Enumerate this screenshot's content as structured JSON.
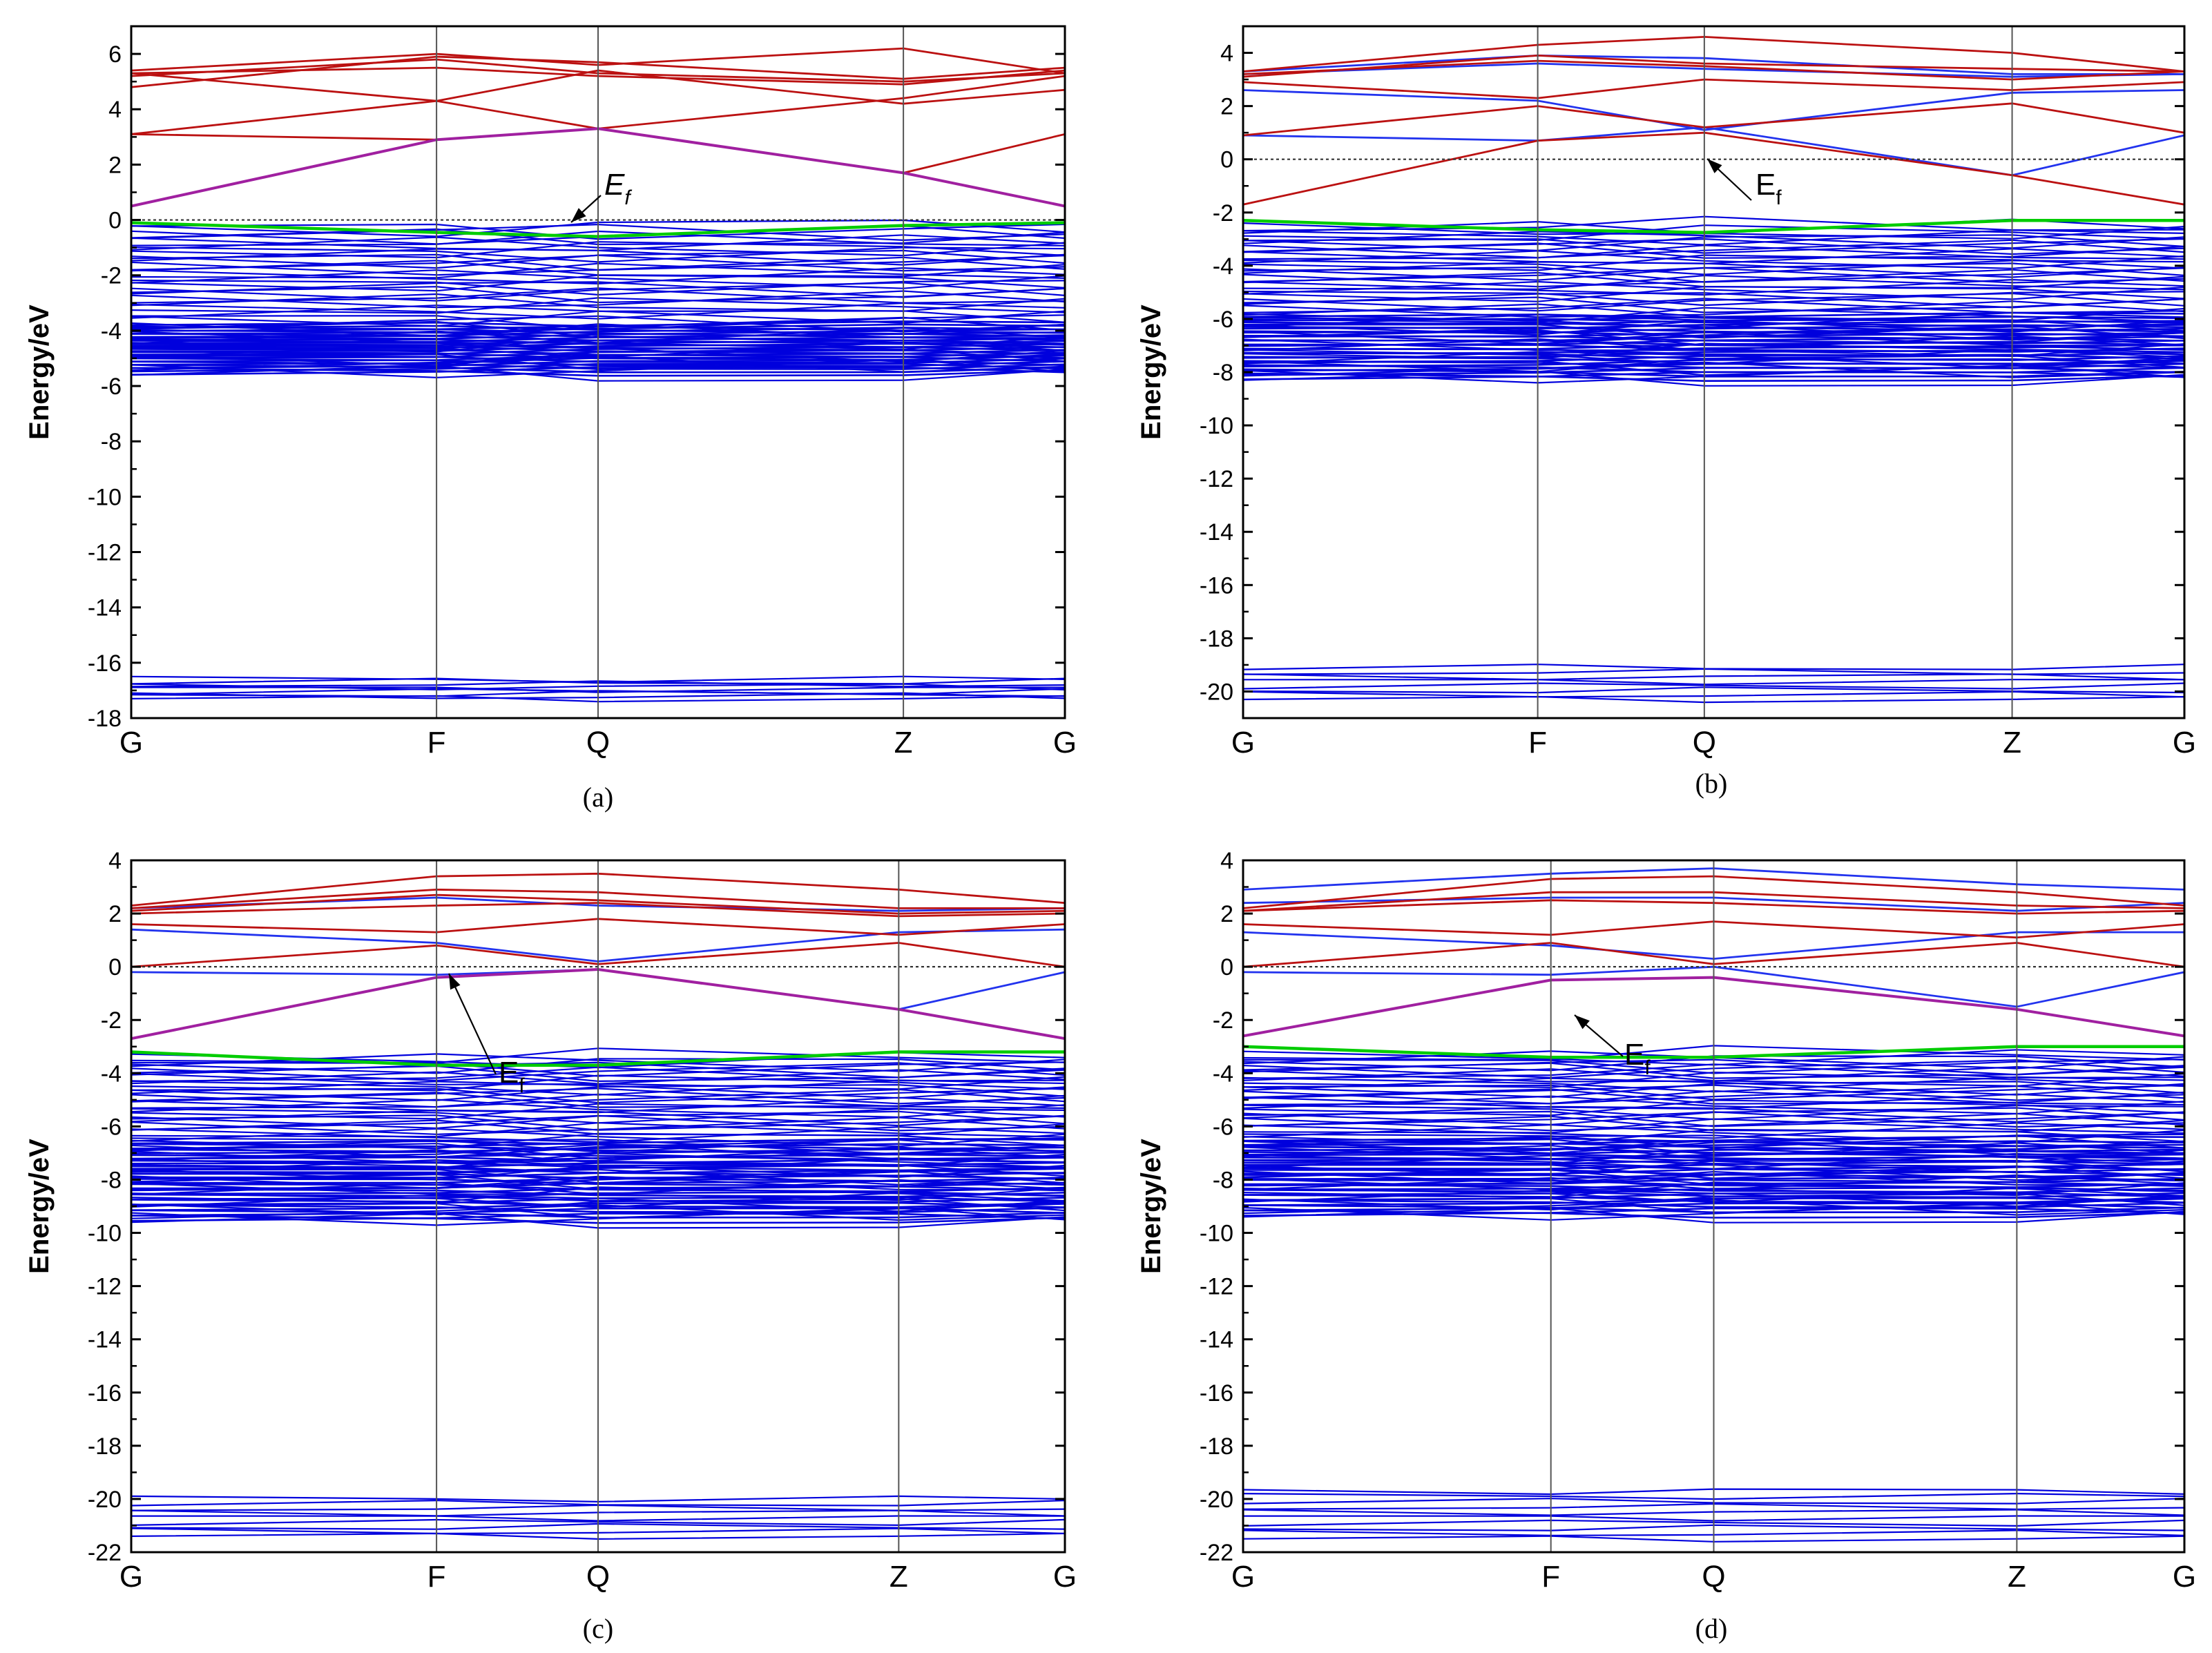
{
  "figure": {
    "kpoints": [
      "G",
      "F",
      "Q",
      "Z",
      "G"
    ],
    "ylabel": "Energy/eV",
    "colors": {
      "core": "#0000dd",
      "valence": "#0000dd",
      "valence_top": "#00cc00",
      "impurity": "#a020a0",
      "conduction": "#bb1111",
      "spin_down": "#2233ee",
      "fermi": "#333333",
      "kline": "#555555"
    }
  },
  "chart_data": [
    {
      "panel": "a",
      "type": "line",
      "caption": "(a)",
      "ylabel": "Energy/eV",
      "ylim": [
        -18,
        7
      ],
      "yticks": [
        -18,
        -16,
        -14,
        -12,
        -10,
        -8,
        -6,
        -4,
        -2,
        0,
        2,
        4,
        6
      ],
      "ytick_labels": [
        "-18",
        "-16",
        "-14",
        "-12",
        "-10",
        "-8",
        "-6",
        "-4",
        "-2",
        "0",
        "2",
        "4",
        "6"
      ],
      "kpoints": [
        "G",
        "F",
        "Q",
        "Z",
        "G"
      ],
      "kpos": [
        0,
        0.327,
        0.5,
        0.827,
        1.0
      ],
      "fermi_level": 0,
      "fermi_label": "E",
      "fermi_sub": "f",
      "valence_top": [
        -0.1,
        -0.45,
        -0.6,
        -0.2,
        -0.1
      ],
      "valence_band": {
        "lines": 46,
        "range": [
          -5.6,
          -0.25
        ],
        "dense_below": -3.9
      },
      "core_band": {
        "lines": 9,
        "range": [
          -17.3,
          -16.6
        ]
      },
      "impurity": [
        [
          0.5,
          2.9,
          3.3,
          1.7,
          0.5
        ]
      ],
      "conduction": [
        [
          3.1,
          2.9,
          3.3,
          1.7,
          3.1
        ],
        [
          3.1,
          4.3,
          3.3,
          4.4,
          5.2
        ],
        [
          5.3,
          4.3,
          5.4,
          4.2,
          4.7
        ],
        [
          5.4,
          6.0,
          5.6,
          6.2,
          5.3
        ],
        [
          5.2,
          5.8,
          5.3,
          5.0,
          5.3
        ],
        [
          5.3,
          5.5,
          5.2,
          4.9,
          5.4
        ],
        [
          4.8,
          5.9,
          5.7,
          5.1,
          5.5
        ]
      ],
      "spin_down": []
    },
    {
      "panel": "b",
      "type": "line",
      "caption": "(b)",
      "ylabel": "Energy/eV",
      "ylim": [
        -21,
        5
      ],
      "yticks": [
        -20,
        -18,
        -16,
        -14,
        -12,
        -10,
        -8,
        -6,
        -4,
        -2,
        0,
        2,
        4
      ],
      "ytick_labels": [
        "-20",
        "-18",
        "-16",
        "-14",
        "-12",
        "-10",
        "-8",
        "-6",
        "-4",
        "-2",
        "0",
        "2",
        "4"
      ],
      "kpoints": [
        "G",
        "F",
        "Q",
        "Z",
        "G"
      ],
      "kpos": [
        0,
        0.313,
        0.49,
        0.817,
        1.0
      ],
      "fermi_level": 0,
      "fermi_label": "E",
      "fermi_sub": "f",
      "valence_top": [
        -2.3,
        -2.65,
        -2.75,
        -2.3,
        -2.3
      ],
      "valence_band": {
        "lines": 52,
        "range": [
          -8.3,
          -2.5
        ],
        "dense_below": -6.0
      },
      "core_band": {
        "lines": 8,
        "range": [
          -20.3,
          -19.1
        ]
      },
      "impurity": [],
      "conduction": [
        [
          -1.7,
          0.7,
          1.0,
          -0.6,
          -1.7
        ],
        [
          0.9,
          2.0,
          1.2,
          2.1,
          1.0
        ],
        [
          2.9,
          2.3,
          3.0,
          2.6,
          2.9
        ],
        [
          3.2,
          3.7,
          3.5,
          3.0,
          3.3
        ],
        [
          3.3,
          4.3,
          4.6,
          4.0,
          3.3
        ],
        [
          3.1,
          3.9,
          3.6,
          3.4,
          3.3
        ]
      ],
      "spin_down": [
        [
          0.9,
          0.7,
          1.2,
          -0.6,
          0.9
        ],
        [
          2.6,
          2.2,
          1.1,
          2.5,
          2.6
        ],
        [
          3.2,
          3.6,
          3.4,
          3.1,
          3.2
        ],
        [
          3.3,
          3.9,
          3.8,
          3.2,
          3.2
        ]
      ]
    },
    {
      "panel": "c",
      "type": "line",
      "caption": "(c)",
      "ylabel": "Energy/eV",
      "ylim": [
        -22,
        4
      ],
      "yticks": [
        -22,
        -20,
        -18,
        -16,
        -14,
        -12,
        -10,
        -8,
        -6,
        -4,
        -2,
        0,
        2,
        4
      ],
      "ytick_labels": [
        "-22",
        "-20",
        "-18",
        "-16",
        "-14",
        "-12",
        "-10",
        "-8",
        "-6",
        "-4",
        "-2",
        "0",
        "2",
        "4"
      ],
      "kpoints": [
        "G",
        "F",
        "Q",
        "Z",
        "G"
      ],
      "kpos": [
        0,
        0.327,
        0.5,
        0.822,
        1.0
      ],
      "fermi_level": 0,
      "fermi_label": "E",
      "fermi_sub": "f",
      "valence_top": [
        -3.2,
        -3.7,
        -3.7,
        -3.2,
        -3.2
      ],
      "valence_band": {
        "lines": 60,
        "range": [
          -9.6,
          -3.4
        ],
        "dense_below": -6.7
      },
      "core_band": {
        "lines": 9,
        "range": [
          -21.4,
          -20.0
        ]
      },
      "impurity": [
        [
          -2.7,
          -0.4,
          -0.1,
          -1.6,
          -2.7
        ]
      ],
      "conduction": [
        [
          0.0,
          0.8,
          0.1,
          0.9,
          0.0
        ],
        [
          1.6,
          1.3,
          1.8,
          1.2,
          1.6
        ],
        [
          2.1,
          2.7,
          2.5,
          2.0,
          2.1
        ],
        [
          2.3,
          3.4,
          3.5,
          2.9,
          2.4
        ],
        [
          2.2,
          2.9,
          2.8,
          2.2,
          2.2
        ],
        [
          2.0,
          2.3,
          2.4,
          1.9,
          2.0
        ]
      ],
      "spin_down": [
        [
          -0.2,
          -0.3,
          -0.1,
          -1.6,
          -0.2
        ],
        [
          1.4,
          0.9,
          0.2,
          1.3,
          1.4
        ],
        [
          2.2,
          2.6,
          2.3,
          2.1,
          2.2
        ]
      ]
    },
    {
      "panel": "d",
      "type": "line",
      "caption": "(d)",
      "ylabel": "Energy/eV",
      "ylim": [
        -22,
        4
      ],
      "yticks": [
        -22,
        -20,
        -18,
        -16,
        -14,
        -12,
        -10,
        -8,
        -6,
        -4,
        -2,
        0,
        2,
        4
      ],
      "ytick_labels": [
        "-22",
        "-20",
        "-18",
        "-16",
        "-14",
        "-12",
        "-10",
        "-8",
        "-6",
        "-4",
        "-2",
        "0",
        "2",
        "4"
      ],
      "kpoints": [
        "G",
        "F",
        "Q",
        "Z",
        "G"
      ],
      "kpos": [
        0,
        0.327,
        0.5,
        0.822,
        1.0
      ],
      "fermi_level": 0,
      "fermi_label": "E",
      "fermi_sub": "f",
      "valence_top": [
        -3.0,
        -3.4,
        -3.4,
        -3.0,
        -3.0
      ],
      "valence_band": {
        "lines": 60,
        "range": [
          -9.4,
          -3.3
        ],
        "dense_below": -6.6
      },
      "core_band": {
        "lines": 10,
        "range": [
          -21.5,
          -19.7
        ]
      },
      "impurity": [
        [
          -2.6,
          -0.5,
          -0.4,
          -1.6,
          -2.6
        ]
      ],
      "conduction": [
        [
          0.0,
          0.9,
          0.1,
          0.9,
          0.0
        ],
        [
          1.6,
          1.2,
          1.7,
          1.1,
          1.6
        ],
        [
          2.1,
          2.5,
          2.4,
          2.0,
          2.1
        ],
        [
          2.2,
          3.3,
          3.4,
          2.8,
          2.3
        ],
        [
          2.1,
          2.8,
          2.8,
          2.3,
          2.2
        ]
      ],
      "spin_down": [
        [
          -0.2,
          -0.3,
          0.0,
          -1.5,
          -0.2
        ],
        [
          1.3,
          0.8,
          0.3,
          1.3,
          1.3
        ],
        [
          2.9,
          3.5,
          3.7,
          3.1,
          2.9
        ],
        [
          2.4,
          2.6,
          2.6,
          2.1,
          2.4
        ]
      ]
    }
  ]
}
